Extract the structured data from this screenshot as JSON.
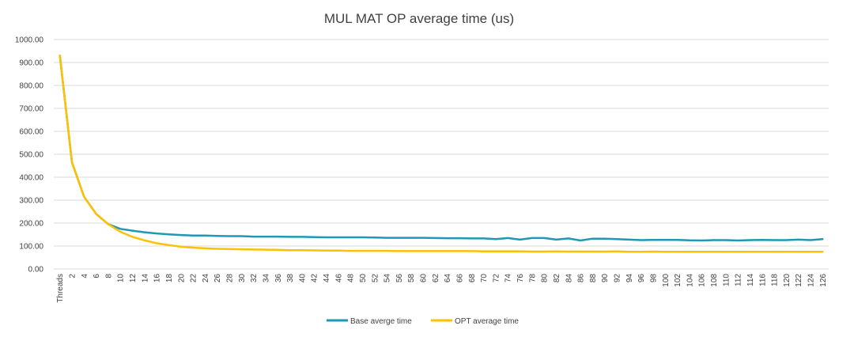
{
  "chart_data": {
    "type": "line",
    "title": "MUL MAT OP average time (us)",
    "xlabel": "",
    "ylabel": "",
    "ylim": [
      0,
      1000
    ],
    "yticks": [
      "0.00",
      "100.00",
      "200.00",
      "300.00",
      "400.00",
      "500.00",
      "600.00",
      "700.00",
      "800.00",
      "900.00",
      "1000.00"
    ],
    "grid": true,
    "legend_position": "bottom",
    "categories": [
      "Threads",
      "2",
      "4",
      "6",
      "8",
      "10",
      "12",
      "14",
      "16",
      "18",
      "20",
      "22",
      "24",
      "26",
      "28",
      "30",
      "32",
      "34",
      "36",
      "38",
      "40",
      "42",
      "44",
      "46",
      "48",
      "50",
      "52",
      "54",
      "56",
      "58",
      "60",
      "62",
      "64",
      "66",
      "68",
      "70",
      "72",
      "74",
      "76",
      "78",
      "80",
      "82",
      "84",
      "86",
      "88",
      "90",
      "92",
      "94",
      "96",
      "98",
      "100",
      "102",
      "104",
      "106",
      "108",
      "110",
      "112",
      "114",
      "116",
      "118",
      "120",
      "122",
      "124",
      "126"
    ],
    "series": [
      {
        "name": "Base averge time",
        "color": "#1f97b8",
        "values": [
          930,
          465,
          315,
          240,
          195,
          175,
          167,
          160,
          155,
          151,
          148,
          146,
          146,
          144,
          143,
          143,
          141,
          141,
          141,
          140,
          140,
          139,
          138,
          138,
          138,
          138,
          137,
          136,
          136,
          136,
          136,
          135,
          134,
          134,
          133,
          133,
          130,
          135,
          128,
          135,
          135,
          128,
          133,
          124,
          132,
          132,
          130,
          128,
          126,
          127,
          127,
          127,
          125,
          124,
          126,
          126,
          124,
          126,
          127,
          126,
          126,
          128,
          126,
          130
        ]
      },
      {
        "name": "OPT average time",
        "color": "#ffc000",
        "values": [
          930,
          465,
          315,
          240,
          195,
          162,
          140,
          125,
          112,
          104,
          97,
          93,
          90,
          88,
          87,
          86,
          85,
          84,
          83,
          82,
          82,
          81,
          80,
          80,
          79,
          79,
          79,
          79,
          78,
          78,
          78,
          78,
          78,
          78,
          78,
          77,
          77,
          77,
          77,
          76,
          76,
          77,
          76,
          76,
          76,
          76,
          77,
          75,
          75,
          76,
          75,
          75,
          75,
          75,
          75,
          75,
          75,
          75,
          75,
          75,
          75,
          75,
          75,
          75
        ]
      }
    ]
  }
}
